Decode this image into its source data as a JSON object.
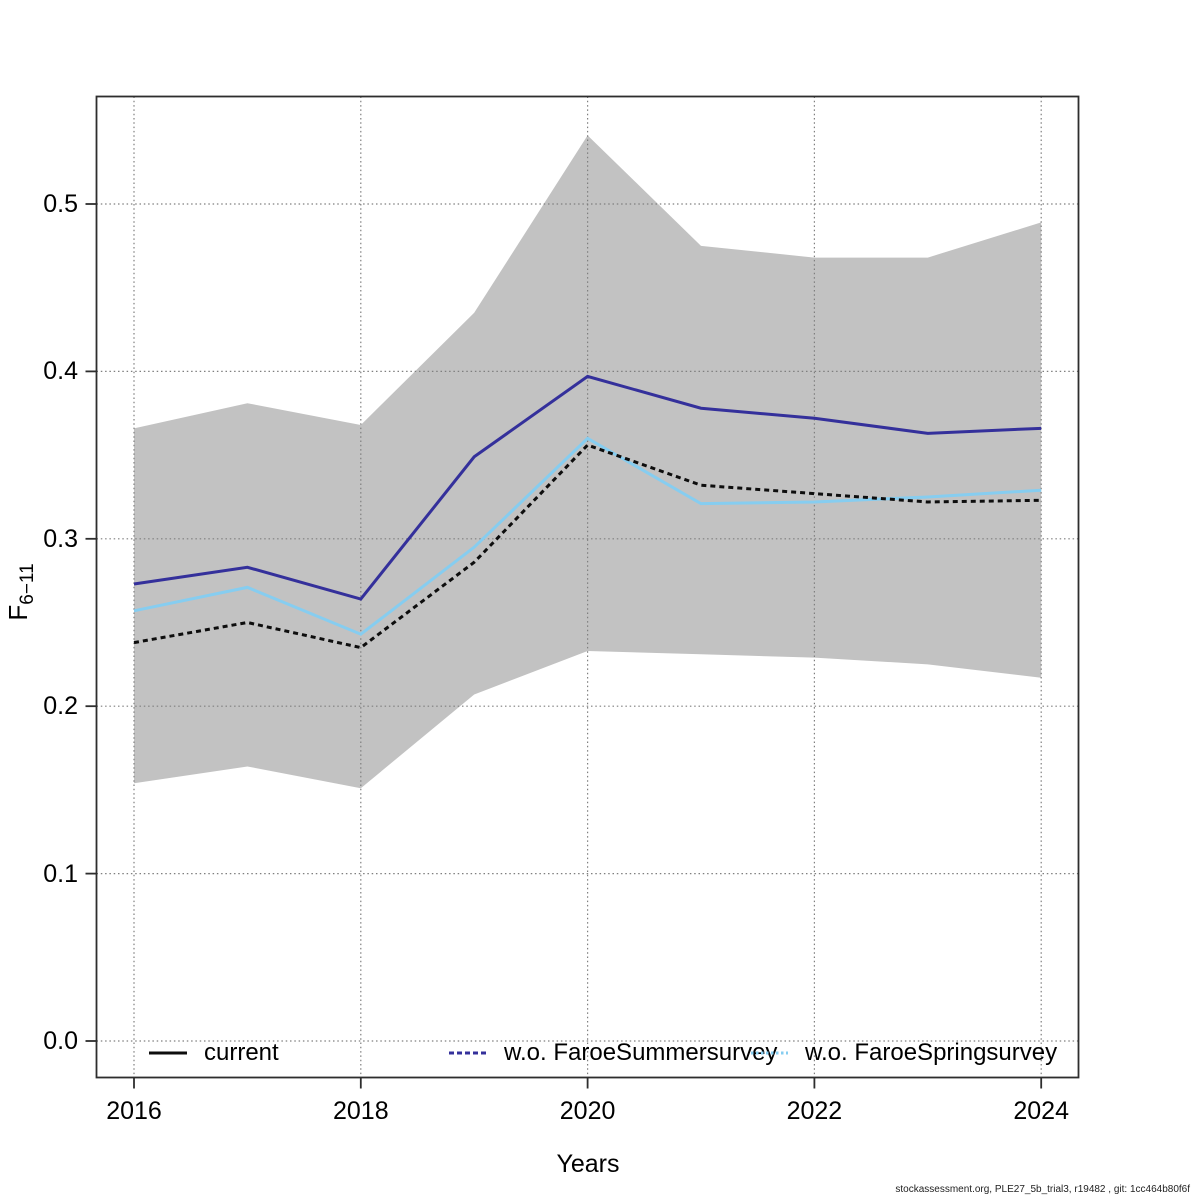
{
  "watermark": "stockassessment.org, PLE27_5b_trial3, r19482 , git: 1cc464b80f6f",
  "chart_data": {
    "type": "line",
    "title": "",
    "xlabel": "Years",
    "ylabel_base": "F",
    "ylabel_sub": "6−11",
    "x": [
      2016,
      2017,
      2018,
      2019,
      2020,
      2021,
      2022,
      2023,
      2024
    ],
    "xticks": [
      2016,
      2018,
      2020,
      2022,
      2024
    ],
    "yticks": [
      "0.0",
      "0.1",
      "0.2",
      "0.3",
      "0.4",
      "0.5"
    ],
    "ylim": [
      0.0,
      0.56
    ],
    "grid": "dotted",
    "legend_position": "bottom-inside",
    "band": {
      "name": "confidence-band",
      "color": "#c2c2c2",
      "upper": [
        0.366,
        0.381,
        0.368,
        0.435,
        0.541,
        0.475,
        0.468,
        0.468,
        0.489
      ],
      "lower": [
        0.154,
        0.164,
        0.151,
        0.207,
        0.233,
        0.231,
        0.229,
        0.225,
        0.217
      ]
    },
    "series": [
      {
        "name": "current",
        "color": "#0d0d0d",
        "plot_dash": "5 4",
        "legend_dash": "",
        "values": [
          0.238,
          0.25,
          0.235,
          0.286,
          0.356,
          0.332,
          0.327,
          0.322,
          0.323
        ]
      },
      {
        "name": "w.o. FaroeSummersurvey",
        "color": "#34309b",
        "plot_dash": "",
        "legend_dash": "5 3",
        "values": [
          0.273,
          0.283,
          0.264,
          0.349,
          0.397,
          0.378,
          0.372,
          0.363,
          0.366
        ]
      },
      {
        "name": "w.o. FaroeSpringsurvey",
        "color": "#86cdf0",
        "plot_dash": "",
        "legend_dash": "2.5 2.5",
        "values": [
          0.257,
          0.271,
          0.243,
          0.295,
          0.36,
          0.321,
          0.322,
          0.325,
          0.329
        ]
      }
    ]
  }
}
